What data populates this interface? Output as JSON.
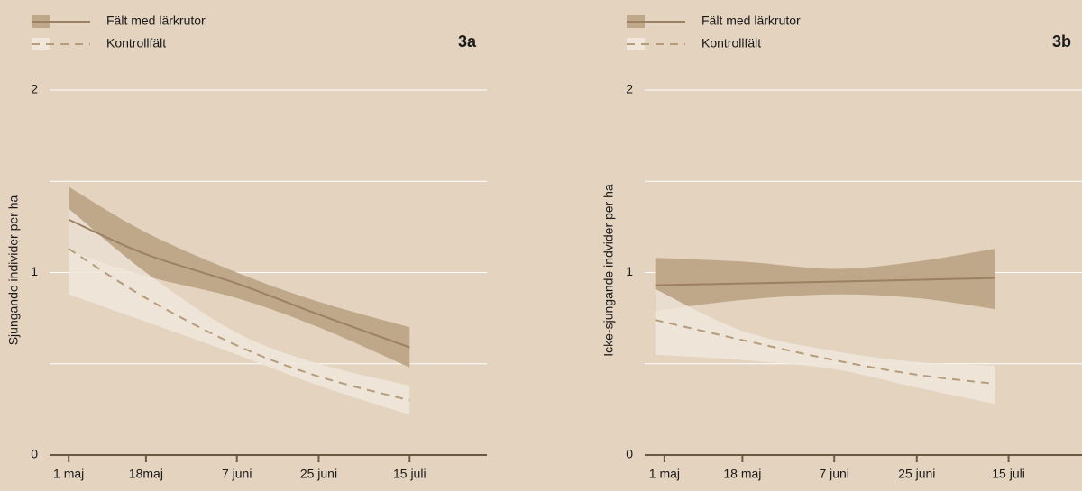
{
  "chart_data": [
    {
      "type": "line",
      "panel_label": "3a",
      "ylabel": "Sjungande individer per ha",
      "x": [
        0,
        17,
        37,
        55,
        75
      ],
      "xlim": [
        -4.2,
        92
      ],
      "xticks": [
        {
          "value": 0,
          "label": "1 maj"
        },
        {
          "value": 17,
          "label": "18maj"
        },
        {
          "value": 37,
          "label": "7 juni"
        },
        {
          "value": 55,
          "label": "25 juni"
        },
        {
          "value": 75,
          "label": "15 juli"
        }
      ],
      "ylim": [
        0,
        2
      ],
      "yticks": [
        0,
        1,
        2
      ],
      "ygrid": [
        0.5,
        1,
        1.5,
        2
      ],
      "grid": true,
      "series": [
        {
          "name": "Fält med lärkrutor",
          "color": "#9c8160",
          "band_color": "#bfa78a",
          "dashed": false,
          "values": [
            1.29,
            1.1,
            0.94,
            0.77,
            0.59
          ],
          "lower": [
            1.12,
            0.98,
            0.86,
            0.7,
            0.48
          ],
          "upper": [
            1.47,
            1.22,
            1.0,
            0.84,
            0.7
          ]
        },
        {
          "name": "Kontrollfält",
          "color": "#b59d7c",
          "band_color": "#f0e6da",
          "dashed": true,
          "values": [
            1.13,
            0.86,
            0.6,
            0.43,
            0.3
          ],
          "lower": [
            0.88,
            0.73,
            0.55,
            0.38,
            0.22
          ],
          "upper": [
            1.35,
            1.0,
            0.67,
            0.5,
            0.38
          ]
        }
      ]
    },
    {
      "type": "line",
      "panel_label": "3b",
      "ylabel": "Icke-sjungande indvider per ha",
      "x": [
        -2,
        17,
        37,
        55,
        72
      ],
      "xlim": [
        -4.3,
        91
      ],
      "xticks": [
        {
          "value": 0,
          "label": "1 maj"
        },
        {
          "value": 17,
          "label": "18 maj"
        },
        {
          "value": 37,
          "label": "7 juni"
        },
        {
          "value": 55,
          "label": "25 juni"
        },
        {
          "value": 75,
          "label": "15 juli"
        }
      ],
      "ylim": [
        0,
        2
      ],
      "yticks": [
        0,
        1,
        2
      ],
      "ygrid": [
        0.5,
        1,
        1.5,
        2
      ],
      "grid": true,
      "series": [
        {
          "name": "Fält med lärkrutor",
          "color": "#9c8160",
          "band_color": "#bfa78a",
          "dashed": false,
          "values": [
            0.93,
            0.94,
            0.95,
            0.96,
            0.97
          ],
          "lower": [
            0.79,
            0.85,
            0.88,
            0.86,
            0.8
          ],
          "upper": [
            1.08,
            1.06,
            1.02,
            1.06,
            1.13
          ]
        },
        {
          "name": "Kontrollfält",
          "color": "#b59d7c",
          "band_color": "#f0e6da",
          "dashed": true,
          "values": [
            0.74,
            0.63,
            0.52,
            0.44,
            0.39
          ],
          "lower": [
            0.55,
            0.52,
            0.47,
            0.37,
            0.28
          ],
          "upper": [
            0.91,
            0.68,
            0.57,
            0.51,
            0.49
          ]
        }
      ]
    }
  ]
}
